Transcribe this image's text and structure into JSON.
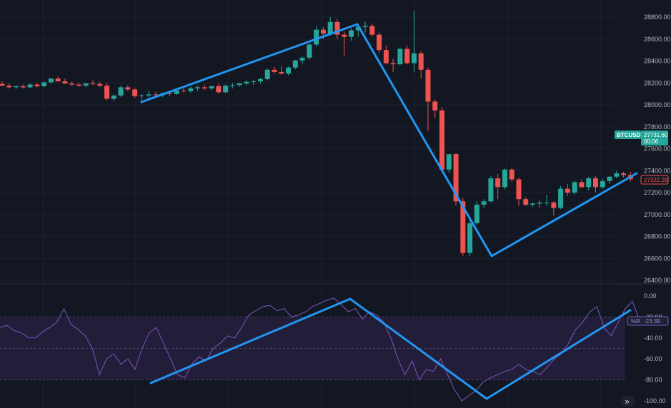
{
  "symbol": "BTCUSDT",
  "colors": {
    "background": "#131722",
    "up": "#26a69a",
    "down": "#ef5350",
    "trendline": "#2196f3",
    "indicator_line": "#7e57c2",
    "indicator_band": "#221d38",
    "grid": "#1c2030",
    "axis_text": "#b2b5be"
  },
  "price_tags": {
    "last_price": "27731.60",
    "countdown": "00:06",
    "marker_price": "27322.28"
  },
  "indicator_tags": {
    "name": "%R",
    "value": "-23.39"
  },
  "buttons": {
    "scroll_right": "»"
  },
  "chart_data": [
    {
      "type": "candlestick",
      "y_tick_labels": [
        "28800.00",
        "28600.00",
        "28400.00",
        "28200.00",
        "28000.00",
        "27800.00",
        "27600.00",
        "27400.00",
        "27200.00",
        "27000.00",
        "26800.00",
        "26600.00",
        "26400.00"
      ],
      "ylim": [
        26380,
        28880
      ],
      "grid": true,
      "candles": [
        [
          28190,
          28215,
          28170,
          28175
        ],
        [
          28175,
          28195,
          28150,
          28160
        ],
        [
          28160,
          28180,
          28145,
          28170
        ],
        [
          28170,
          28185,
          28150,
          28160
        ],
        [
          28160,
          28195,
          28150,
          28185
        ],
        [
          28185,
          28200,
          28160,
          28170
        ],
        [
          28170,
          28215,
          28160,
          28205
        ],
        [
          28205,
          28245,
          28195,
          28240
        ],
        [
          28240,
          28260,
          28210,
          28215
        ],
        [
          28215,
          28240,
          28190,
          28195
        ],
        [
          28195,
          28215,
          28170,
          28185
        ],
        [
          28185,
          28200,
          28165,
          28175
        ],
        [
          28175,
          28200,
          28160,
          28195
        ],
        [
          28195,
          28225,
          28180,
          28190
        ],
        [
          28190,
          28210,
          28165,
          28175
        ],
        [
          28175,
          28200,
          28040,
          28055
        ],
        [
          28055,
          28095,
          28035,
          28085
        ],
        [
          28085,
          28175,
          28070,
          28160
        ],
        [
          28160,
          28180,
          28125,
          28140
        ],
        [
          28140,
          28155,
          28065,
          28080
        ],
        [
          28080,
          28100,
          28045,
          28085
        ],
        [
          28085,
          28130,
          28060,
          28095
        ],
        [
          28095,
          28120,
          28070,
          28090
        ],
        [
          28090,
          28115,
          28070,
          28105
        ],
        [
          28105,
          28130,
          28080,
          28100
        ],
        [
          28100,
          28145,
          28090,
          28130
        ],
        [
          28130,
          28155,
          28110,
          28125
        ],
        [
          28125,
          28165,
          28110,
          28150
        ],
        [
          28150,
          28175,
          28125,
          28160
        ],
        [
          28160,
          28180,
          28140,
          28150
        ],
        [
          28150,
          28175,
          28130,
          28170
        ],
        [
          28170,
          28190,
          28100,
          28115
        ],
        [
          28115,
          28185,
          28105,
          28175
        ],
        [
          28175,
          28200,
          28150,
          28180
        ],
        [
          28180,
          28200,
          28165,
          28195
        ],
        [
          28195,
          28225,
          28180,
          28210
        ],
        [
          28210,
          28230,
          28180,
          28215
        ],
        [
          28215,
          28245,
          28195,
          28235
        ],
        [
          28235,
          28330,
          28225,
          28320
        ],
        [
          28320,
          28345,
          28280,
          28300
        ],
        [
          28300,
          28355,
          28275,
          28285
        ],
        [
          28285,
          28350,
          28270,
          28340
        ],
        [
          28340,
          28410,
          28325,
          28405
        ],
        [
          28405,
          28440,
          28375,
          28430
        ],
        [
          28430,
          28560,
          28410,
          28550
        ],
        [
          28550,
          28720,
          28530,
          28685
        ],
        [
          28685,
          28710,
          28600,
          28650
        ],
        [
          28650,
          28800,
          28630,
          28755
        ],
        [
          28755,
          28780,
          28600,
          28640
        ],
        [
          28640,
          28670,
          28450,
          28620
        ],
        [
          28620,
          28700,
          28585,
          28680
        ],
        [
          28680,
          28730,
          28620,
          28710
        ],
        [
          28710,
          28760,
          28660,
          28720
        ],
        [
          28720,
          28740,
          28620,
          28640
        ],
        [
          28640,
          28660,
          28470,
          28500
        ],
        [
          28500,
          28540,
          28370,
          28380
        ],
        [
          28380,
          28420,
          28300,
          28370
        ],
        [
          28370,
          28520,
          28360,
          28510
        ],
        [
          28510,
          28540,
          28370,
          28380
        ],
        [
          28380,
          28860,
          28300,
          28470
        ],
        [
          28470,
          28490,
          28240,
          28320
        ],
        [
          28320,
          28340,
          27760,
          28030
        ],
        [
          28030,
          28050,
          27880,
          27950
        ],
        [
          27950,
          27980,
          27400,
          27410
        ],
        [
          27410,
          27550,
          27380,
          27550
        ],
        [
          27550,
          27560,
          27080,
          27120
        ],
        [
          27120,
          27150,
          26620,
          26650
        ],
        [
          26650,
          26960,
          26620,
          26920
        ],
        [
          26920,
          27120,
          26910,
          27090
        ],
        [
          27090,
          27140,
          27060,
          27120
        ],
        [
          27120,
          27350,
          27110,
          27330
        ],
        [
          27330,
          27370,
          27140,
          27250
        ],
        [
          27250,
          27420,
          27230,
          27410
        ],
        [
          27410,
          27430,
          27300,
          27320
        ],
        [
          27320,
          27340,
          27080,
          27140
        ],
        [
          27140,
          27160,
          27080,
          27090
        ],
        [
          27090,
          27110,
          27070,
          27100
        ],
        [
          27100,
          27130,
          27060,
          27110
        ],
        [
          27110,
          27180,
          27080,
          27110
        ],
        [
          27110,
          27120,
          26990,
          27060
        ],
        [
          27060,
          27260,
          27050,
          27235
        ],
        [
          27235,
          27280,
          27170,
          27200
        ],
        [
          27200,
          27310,
          27180,
          27295
        ],
        [
          27295,
          27320,
          27240,
          27250
        ],
        [
          27250,
          27345,
          27220,
          27330
        ],
        [
          27330,
          27350,
          27200,
          27250
        ],
        [
          27250,
          27330,
          27230,
          27305
        ],
        [
          27305,
          27350,
          27280,
          27345
        ],
        [
          27345,
          27400,
          27330,
          27375
        ],
        [
          27375,
          27390,
          27340,
          27360
        ],
        [
          27360,
          27390,
          27300,
          27322
        ]
      ]
    },
    {
      "type": "line",
      "series": [
        {
          "values": [
            -30,
            -28,
            -33,
            -35,
            -40,
            -40,
            -34,
            -30,
            -25,
            -12,
            -27,
            -32,
            -38,
            -50,
            -75,
            -60,
            -55,
            -65,
            -60,
            -70,
            -50,
            -35,
            -30,
            -45,
            -60,
            -75,
            -78,
            -65,
            -58,
            -62,
            -50,
            -45,
            -38,
            -40,
            -30,
            -18,
            -14,
            -10,
            -9,
            -14,
            -12,
            -20,
            -18,
            -15,
            -10,
            -7,
            -4,
            -2,
            -8,
            -15,
            -12,
            -22,
            -15,
            -18,
            -25,
            -40,
            -60,
            -75,
            -62,
            -80,
            -70,
            -72,
            -60,
            -75,
            -90,
            -100,
            -95,
            -90,
            -82,
            -78,
            -75,
            -72,
            -70,
            -65,
            -70,
            -72,
            -75,
            -68,
            -60,
            -55,
            -45,
            -32,
            -25,
            -15,
            -10,
            -30,
            -38,
            -25,
            -12,
            -5,
            -23.39
          ]
        }
      ],
      "y_tick_labels": [
        "0.00",
        "-20.00",
        "-40.00",
        "-60.00",
        "-80.00",
        "-100.00"
      ],
      "ylim": [
        -103,
        3
      ],
      "bands": [
        -20,
        -50,
        -80
      ]
    }
  ]
}
